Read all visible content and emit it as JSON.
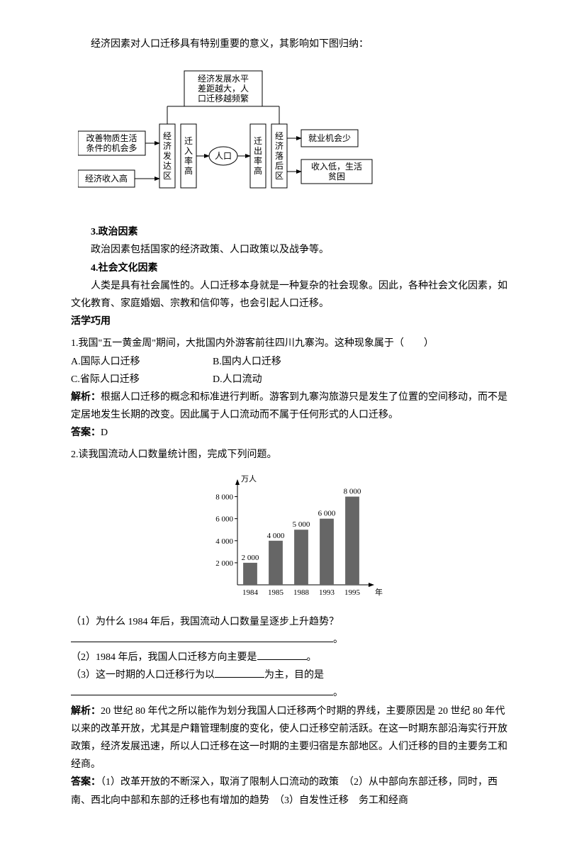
{
  "intro": "经济因素对人口迁移具有特别重要的意义，其影响如下图归纳：",
  "diagram1": {
    "boxes": {
      "top": "经济发展水平\n差距越大，人\n口迁移越频繁",
      "left1": "改善物质生活\n条件的机会多",
      "left2": "经济收入高",
      "col_l": "经济发达区",
      "col_l2": "迁入率高",
      "center": "人口",
      "col_r2": "迁出率高",
      "col_r": "经济落后区",
      "right1": "就业机会少",
      "right2": "收入低，生活\n贫困"
    },
    "font_size": 12,
    "stroke": "#000",
    "fill": "#fff"
  },
  "section3_title": "3.政治因素",
  "section3_body": "政治因素包括国家的经济政策、人口政策以及战争等。",
  "section4_title": "4.社会文化因素",
  "section4_body": "人类是具有社会属性的。人口迁移本身就是一种复杂的社会现象。因此，各种社会文化因素，如文化教育、家庭婚姻、宗教和信仰等，也会引起人口迁移。",
  "application_title": "活学巧用",
  "q1": {
    "text": "1.我国\"五一黄金周\"期间，大批国内外游客前往四川九寨沟。这种现象属于（　　）",
    "opts": {
      "A": "A.国际人口迁移",
      "B": "B.国内人口迁移",
      "C": "C.省际人口迁移",
      "D": "D.人口流动"
    },
    "analysis_label": "解析：",
    "analysis": "根据人口迁移的概念和标准进行判断。游客到九寨沟旅游只是发生了位置的空间移动，而不是定居地发生长期的改变。因此属于人口流动而不属于任何形式的人口迁移。",
    "answer_label": "答案：",
    "answer": "D"
  },
  "q2": {
    "text": "2.读我国流动人口数量统计图，完成下列问题。",
    "chart": {
      "type": "bar",
      "y_unit": "万人",
      "x_unit": "年",
      "categories": [
        "1984",
        "1985",
        "1988",
        "1993",
        "1995"
      ],
      "values": [
        2000,
        4000,
        5000,
        6000,
        8000
      ],
      "value_labels": [
        "2 000",
        "4 000",
        "5 000",
        "6 000",
        "8 000"
      ],
      "y_ticks": [
        2000,
        4000,
        6000,
        8000
      ],
      "y_tick_labels": [
        "2 000",
        "4 000",
        "6 000",
        "8 000"
      ],
      "ylim": [
        0,
        9000
      ],
      "bar_color": "#666666",
      "axis_color": "#000000",
      "bar_width_ratio": 0.55,
      "font_size": 11
    },
    "sub1": "（1）为什么 1984 年后，我国流动人口数量呈逐步上升趋势？",
    "sub2_pre": "（2）1984 年后，我国人口迁移方向主要是",
    "sub2_post": "。",
    "sub3_pre": "（3）这一时期的人口迁移行为以",
    "sub3_mid": "为主，目的是",
    "sub3_post": "。",
    "analysis_label": "解析：",
    "analysis": "20 世纪 80 年代之所以能作为划分我国人口迁移两个时期的界线，主要原因是 20 世纪 80 年代以来的改革开放，尤其是户籍管理制度的变化，使人口迁移空前活跃。在这一时期东部沿海实行开放政策，经济发展迅速，所以人口迁移在这一时期的主要归宿是东部地区。人们迁移的目的主要务工和经商。",
    "answer_label": "答案：",
    "answer": "（1）改革开放的不断深入，取消了限制人口流动的政策　（2）从中部向东部迁移，同时，西南、西北向中部和东部的迁移也有增加的趋势　（3）自发性迁移　务工和经商"
  }
}
